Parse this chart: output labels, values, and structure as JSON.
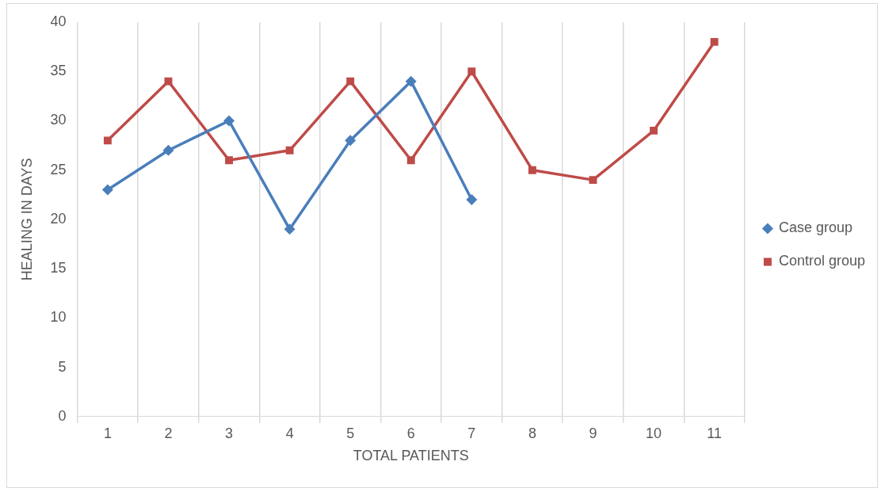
{
  "chart_data": {
    "type": "line",
    "xlabel": "TOTAL PATIENTS",
    "ylabel": "HEALING IN DAYS",
    "categories": [
      "1",
      "2",
      "3",
      "4",
      "5",
      "6",
      "7",
      "8",
      "9",
      "10",
      "11"
    ],
    "series": [
      {
        "name": "Case group",
        "color": "#4a7ebb",
        "marker": "diamond",
        "values": [
          23,
          27,
          30,
          19,
          28,
          34,
          22,
          null,
          null,
          null,
          null
        ]
      },
      {
        "name": "Control group",
        "color": "#be4b48",
        "marker": "square",
        "values": [
          28,
          34,
          26,
          27,
          34,
          26,
          35,
          25,
          24,
          29,
          38
        ]
      }
    ],
    "ylim": [
      0,
      40
    ],
    "yticks": [
      0,
      5,
      10,
      15,
      20,
      25,
      30,
      35,
      40
    ],
    "grid": "x",
    "legend": "right",
    "line_style": "solid"
  }
}
